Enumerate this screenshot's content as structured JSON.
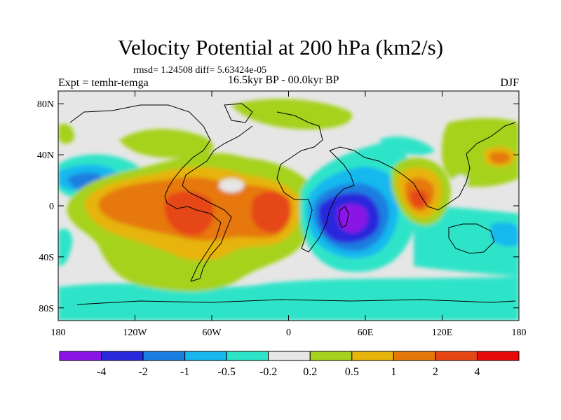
{
  "title": "Velocity Potential at 200 hPa (km2/s)",
  "stats": "rmsd= 1.24508 diff= 5.63424e-05",
  "experiment": "Expt = temhr-temga",
  "period": "16.5kyr BP - 00.0kyr BP",
  "season": "DJF",
  "map": {
    "projection": "cylindrical equidistant",
    "lon_range": [
      -180,
      180
    ],
    "lat_range": [
      -90,
      90
    ],
    "lat_ticks": [
      {
        "value": 80,
        "label": "80N"
      },
      {
        "value": 40,
        "label": "40N"
      },
      {
        "value": 0,
        "label": "0"
      },
      {
        "value": -40,
        "label": "40S"
      },
      {
        "value": -80,
        "label": "80S"
      }
    ],
    "lon_ticks": [
      {
        "value": -180,
        "label": "180"
      },
      {
        "value": -120,
        "label": "120W"
      },
      {
        "value": -60,
        "label": "60W"
      },
      {
        "value": 0,
        "label": "0"
      },
      {
        "value": 60,
        "label": "60E"
      },
      {
        "value": 120,
        "label": "120E"
      },
      {
        "value": 180,
        "label": "180"
      }
    ]
  },
  "colorbar": {
    "colors": [
      "#8a14e6",
      "#2a28dc",
      "#1a7ee0",
      "#16b8ee",
      "#2ee4c8",
      "#e6e6e6",
      "#a6d21e",
      "#e6b40a",
      "#e6780a",
      "#e64614",
      "#e60a0a"
    ],
    "labels": [
      "-4",
      "-2",
      "-1",
      "-0.5",
      "-0.2",
      "0.2",
      "0.5",
      "1",
      "2",
      "4"
    ]
  }
}
